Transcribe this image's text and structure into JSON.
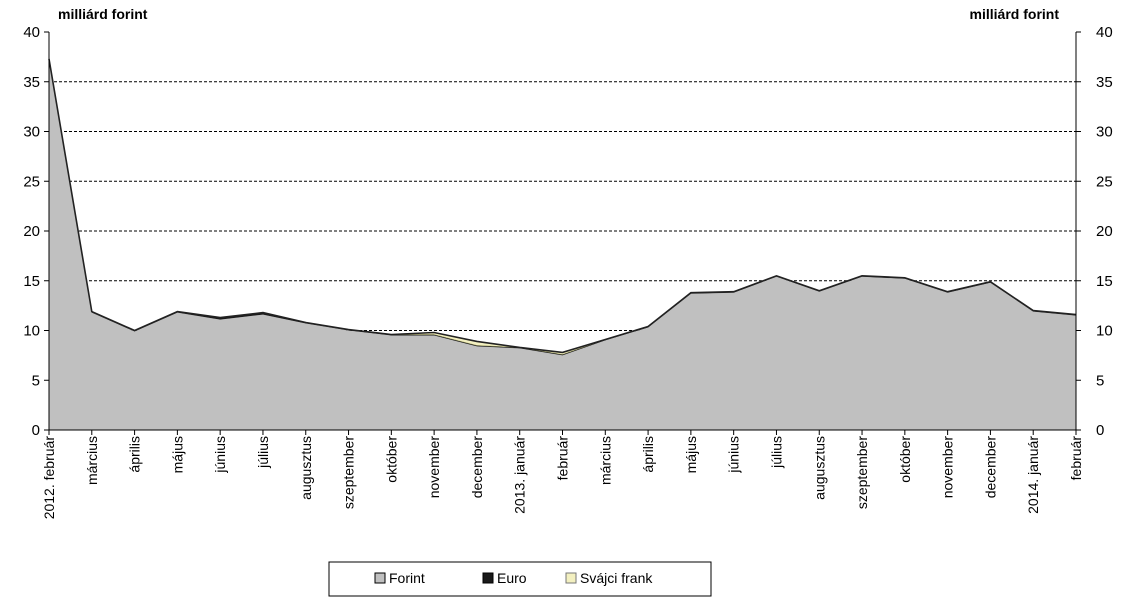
{
  "chart_data": {
    "type": "area",
    "stacked": true,
    "y_unit_left": "milliárd forint",
    "y_unit_right": "milliárd forint",
    "ylim": [
      0,
      40
    ],
    "yticks": [
      0,
      5,
      10,
      15,
      20,
      25,
      30,
      35,
      40
    ],
    "grid": "horizontal dashed at 10, 15, 20, 25, 30, 35",
    "legend_position": "bottom",
    "categories": [
      "2012. február",
      "március",
      "április",
      "május",
      "június",
      "július",
      "augusztus",
      "szeptember",
      "október",
      "november",
      "december",
      "2013. január",
      "február",
      "március",
      "április",
      "május",
      "június",
      "július",
      "augusztus",
      "szeptember",
      "október",
      "november",
      "december",
      "2014. január",
      "február"
    ],
    "series": [
      {
        "name": "Forint",
        "color": "#c0c0c0",
        "values": [
          37.0,
          11.8,
          9.9,
          11.8,
          11.1,
          11.6,
          10.7,
          10.0,
          9.5,
          9.5,
          8.4,
          8.2,
          7.5,
          9.0,
          10.3,
          13.7,
          13.8,
          15.4,
          13.9,
          15.4,
          15.2,
          13.8,
          14.8,
          11.9,
          11.5
        ]
      },
      {
        "name": "Euro",
        "color": "#1a1a1a",
        "values": [
          0.3,
          0.1,
          0.1,
          0.1,
          0.2,
          0.2,
          0.1,
          0.1,
          0.1,
          0.1,
          0.1,
          0.1,
          0.1,
          0.1,
          0.1,
          0.1,
          0.1,
          0.1,
          0.1,
          0.1,
          0.1,
          0.1,
          0.1,
          0.1,
          0.1
        ]
      },
      {
        "name": "Svájci frank",
        "color": "#f3f0c0",
        "values": [
          0.0,
          0.0,
          0.0,
          0.0,
          0.0,
          0.0,
          0.0,
          0.0,
          0.0,
          0.2,
          0.4,
          0.0,
          0.2,
          0.0,
          0.0,
          0.0,
          0.0,
          0.0,
          0.0,
          0.0,
          0.0,
          0.0,
          0.0,
          0.0,
          0.0
        ]
      }
    ]
  }
}
